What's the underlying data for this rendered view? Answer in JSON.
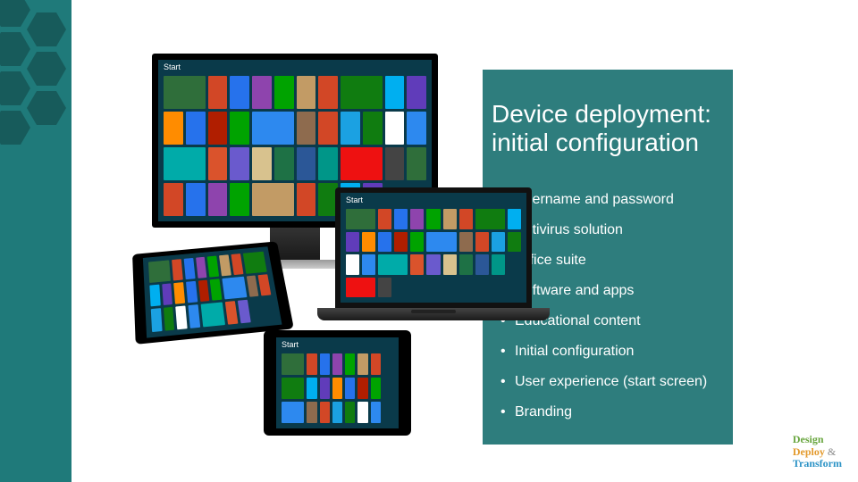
{
  "sidebar": {
    "bg": "#1f7a7a",
    "hex_color": "rgba(0,0,0,0.25)"
  },
  "panel": {
    "bg": "#2e7d7d"
  },
  "title": "Device deployment: initial configuration",
  "bullets": [
    "Username and password",
    "Antivirus solution",
    "Office suite",
    "Software and apps",
    "Educational content",
    "Initial configuration",
    "User experience (start screen)",
    "Branding"
  ],
  "start_label": "Start",
  "tile_colors": [
    "#2f6e3a",
    "#d24726",
    "#2672ec",
    "#8e44ad",
    "#00a300",
    "#c29b65",
    "#d24726",
    "#107c10",
    "#00aff0",
    "#603cba",
    "#ff8c00",
    "#2672ec",
    "#b01e00",
    "#00a300",
    "#2d89ef",
    "#8e6b4e",
    "#d24726",
    "#1ba1e2",
    "#107c10",
    "#ffffff",
    "#2d89ef",
    "#00aba9",
    "#da532c",
    "#6a5acd",
    "#d8c28e",
    "#1e7145",
    "#2b5797",
    "#009688",
    "#ee1111",
    "#444444"
  ],
  "logo": {
    "line1": "Design",
    "line2": "Deploy",
    "amp": "&",
    "line3": "Transform"
  }
}
